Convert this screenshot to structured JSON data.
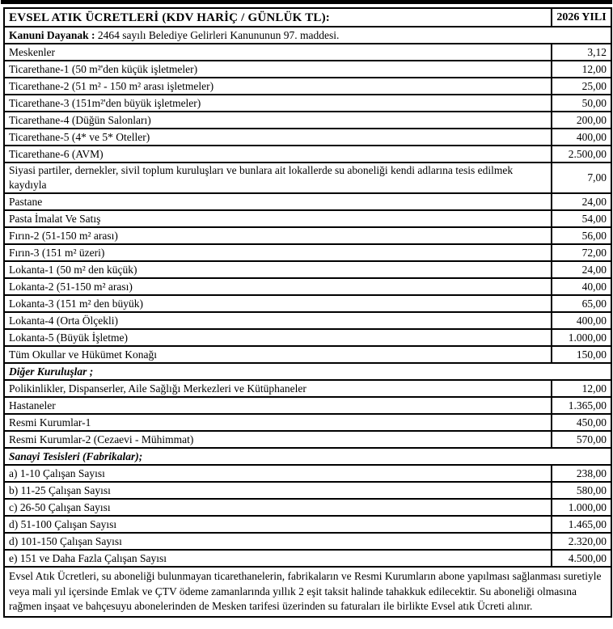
{
  "page": {
    "background_color": "#ffffff",
    "border_color": "#000000"
  },
  "header": {
    "title": "EVSEL ATIK ÜCRETLERİ (KDV HARİÇ / GÜNLÜK TL):",
    "year": "2026 YILI"
  },
  "legal_basis": {
    "label": "Kanuni Dayanak :",
    "text": " 2464 sayılı Belediye Gelirleri Kanununun 97. maddesi."
  },
  "rows": [
    {
      "label": "Meskenler",
      "value": "3,12"
    },
    {
      "label": "Ticarethane-1 (50 m²'den küçük işletmeler)",
      "value": "12,00"
    },
    {
      "label": "Ticarethane-2 (51 m² - 150 m² arası işletmeler)",
      "value": "25,00"
    },
    {
      "label": "Ticarethane-3 (151m²'den büyük işletmeler)",
      "value": "50,00"
    },
    {
      "label": "Ticarethane-4 (Düğün Salonları)",
      "value": "200,00"
    },
    {
      "label": "Ticarethane-5 (4* ve 5* Oteller)",
      "value": "400,00"
    },
    {
      "label": "Ticarethane-6 (AVM)",
      "value": "2.500,00"
    },
    {
      "label": "Siyasi partiler, dernekler, sivil toplum kuruluşları ve bunlara ait lokallerde su aboneliği kendi adlarına tesis edilmek kaydıyla",
      "value": "7,00"
    },
    {
      "label": "Pastane",
      "value": "24,00"
    },
    {
      "label": "Pasta İmalat Ve Satış",
      "value": "54,00"
    },
    {
      "label": "Fırın-2 (51-150 m² arası)",
      "value": "56,00"
    },
    {
      "label": "Fırın-3 (151 m² üzeri)",
      "value": "72,00"
    },
    {
      "label": "Lokanta-1 (50 m² den küçük)",
      "value": "24,00"
    },
    {
      "label": "Lokanta-2 (51-150 m² arası)",
      "value": "40,00"
    },
    {
      "label": "Lokanta-3 (151 m² den büyük)",
      "value": "65,00"
    },
    {
      "label": "Lokanta-4 (Orta Ölçekli)",
      "value": "400,00"
    },
    {
      "label": "Lokanta-5 (Büyük İşletme)",
      "value": "1.000,00"
    },
    {
      "label": "Tüm Okullar ve Hükümet Konağı",
      "value": "150,00"
    },
    {
      "section": "Diğer Kuruluşlar ;"
    },
    {
      "label": "Polikinlikler, Dispanserler, Aile Sağlığı Merkezleri ve Kütüphaneler",
      "value": "12,00"
    },
    {
      "label": "Hastaneler",
      "value": "1.365,00"
    },
    {
      "label": "Resmi Kurumlar-1",
      "value": "450,00"
    },
    {
      "label": "Resmi Kurumlar-2 (Cezaevi - Mühimmat)",
      "value": "570,00"
    },
    {
      "section": "Sanayi Tesisleri (Fabrikalar);"
    },
    {
      "label": "a) 1-10 Çalışan Sayısı",
      "value": "238,00"
    },
    {
      "label": "b) 11-25 Çalışan Sayısı",
      "value": "580,00"
    },
    {
      "label": "c) 26-50  Çalışan Sayısı",
      "value": "1.000,00"
    },
    {
      "label": "d) 51-100 Çalışan Sayısı",
      "value": "1.465,00"
    },
    {
      "label": "d) 101-150 Çalışan Sayısı",
      "value": "2.320,00"
    },
    {
      "label": "e) 151 ve Daha Fazla Çalışan Sayısı",
      "value": "4.500,00"
    }
  ],
  "footer_note": "Evsel Atık Ücretleri, su aboneliği bulunmayan ticarethanelerin, fabrikaların ve Resmi Kurumların abone yapılması sağlanması suretiyle veya mali yıl içersinde Emlak ve ÇTV ödeme zamanlarında yıllık 2 eşit taksit halinde tahakkuk edilecektir. Su aboneliği olmasına rağmen inşaat ve bahçesuyu abonelerinden de Mesken tarifesi üzerinden su faturaları ile birlikte Evsel atık Ücreti alınır."
}
